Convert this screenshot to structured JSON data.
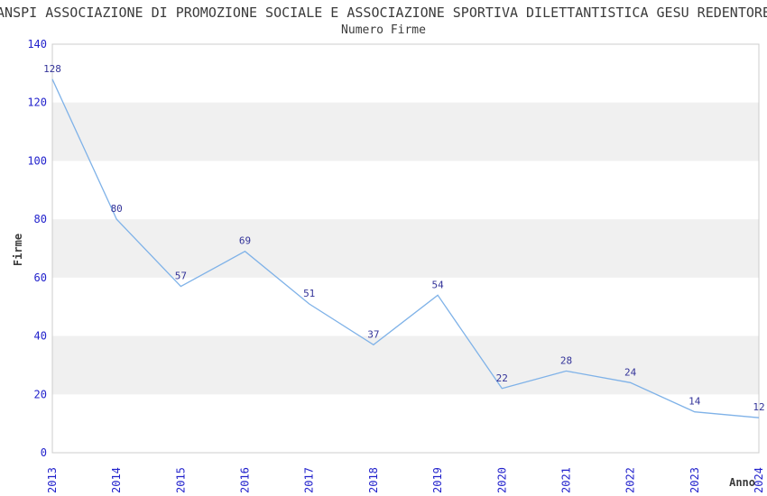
{
  "chart_data": {
    "type": "line",
    "title": "ANSPI ASSOCIAZIONE DI PROMOZIONE SOCIALE E ASSOCIAZIONE SPORTIVA DILETTANTISTICA GESU REDENTORE",
    "subtitle": "Numero Firme",
    "x": [
      "2013",
      "2014",
      "2015",
      "2016",
      "2017",
      "2018",
      "2019",
      "2020",
      "2021",
      "2022",
      "2023",
      "2024"
    ],
    "series": [
      {
        "name": "Numero Firme",
        "values": [
          128,
          80,
          57,
          69,
          51,
          37,
          54,
          22,
          28,
          24,
          14,
          12
        ]
      }
    ],
    "xlabel": "Anno",
    "ylabel": "Firme",
    "ylim": [
      0,
      140
    ],
    "yticks": [
      0,
      20,
      40,
      60,
      80,
      100,
      120,
      140
    ],
    "ytick_step": 20,
    "grid": "alternating horizontal bands",
    "legend_position": "none",
    "data_labels_visible": true,
    "colors": {
      "line": "#7fb2e8",
      "tick_label": "#2222cc",
      "data_label": "#333399",
      "band": "#f0f0f0",
      "plot_border": "#cccccc",
      "text": "#3b3b3b",
      "background": "#ffffff"
    }
  }
}
